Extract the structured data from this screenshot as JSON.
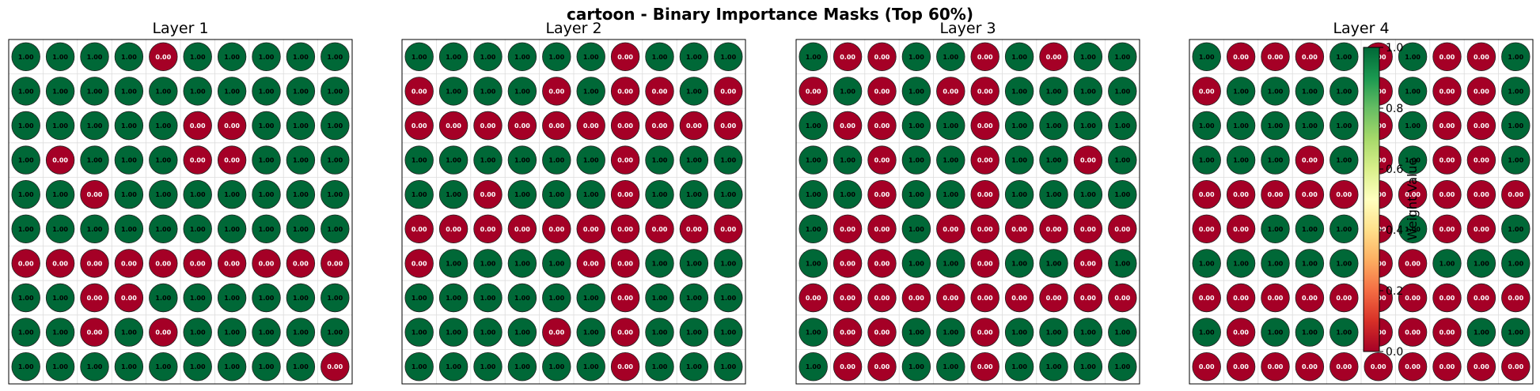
{
  "figure": {
    "title": "cartoon - Binary Importance Masks (Top 60%)"
  },
  "colors": {
    "one": "#006837",
    "zero": "#a50026",
    "grid": "#dddddd",
    "frame": "#000000"
  },
  "colorbar": {
    "label": "Weight Value",
    "ticks": [
      "0.0",
      "0.2",
      "0.4",
      "0.6",
      "0.8",
      "1.0"
    ],
    "range": [
      0,
      1
    ],
    "colormap": "RdYlGn"
  },
  "chart_data": [
    {
      "type": "heatmap",
      "title": "Layer 1",
      "rows": 10,
      "cols": 10,
      "values": [
        [
          1,
          1,
          1,
          1,
          0,
          1,
          1,
          1,
          1,
          1
        ],
        [
          1,
          1,
          1,
          1,
          1,
          1,
          1,
          1,
          1,
          1
        ],
        [
          1,
          1,
          1,
          1,
          1,
          0,
          0,
          1,
          1,
          1
        ],
        [
          1,
          0,
          1,
          1,
          1,
          0,
          0,
          1,
          1,
          1
        ],
        [
          1,
          1,
          0,
          1,
          1,
          1,
          1,
          1,
          1,
          1
        ],
        [
          1,
          1,
          1,
          1,
          1,
          1,
          1,
          1,
          1,
          1
        ],
        [
          0,
          0,
          0,
          0,
          0,
          0,
          0,
          0,
          0,
          0
        ],
        [
          1,
          1,
          0,
          0,
          1,
          1,
          1,
          1,
          1,
          1
        ],
        [
          1,
          1,
          0,
          1,
          0,
          1,
          1,
          1,
          1,
          1
        ],
        [
          1,
          1,
          1,
          1,
          1,
          1,
          1,
          1,
          1,
          0
        ]
      ]
    },
    {
      "type": "heatmap",
      "title": "Layer 2",
      "rows": 10,
      "cols": 10,
      "values": [
        [
          1,
          1,
          1,
          1,
          1,
          1,
          0,
          1,
          1,
          1
        ],
        [
          0,
          1,
          1,
          1,
          0,
          1,
          0,
          0,
          1,
          0
        ],
        [
          0,
          0,
          0,
          0,
          0,
          0,
          0,
          0,
          0,
          0
        ],
        [
          1,
          1,
          1,
          1,
          1,
          1,
          0,
          1,
          1,
          1
        ],
        [
          1,
          1,
          0,
          1,
          1,
          1,
          0,
          1,
          1,
          1
        ],
        [
          0,
          0,
          0,
          0,
          0,
          0,
          0,
          0,
          0,
          0
        ],
        [
          0,
          1,
          1,
          1,
          1,
          0,
          0,
          1,
          1,
          1
        ],
        [
          1,
          1,
          1,
          1,
          1,
          1,
          0,
          1,
          1,
          1
        ],
        [
          1,
          1,
          1,
          1,
          0,
          1,
          0,
          1,
          1,
          1
        ],
        [
          1,
          1,
          1,
          1,
          1,
          1,
          0,
          1,
          1,
          1
        ]
      ]
    },
    {
      "type": "heatmap",
      "title": "Layer 3",
      "rows": 10,
      "cols": 10,
      "values": [
        [
          1,
          0,
          0,
          1,
          1,
          0,
          1,
          0,
          1,
          1
        ],
        [
          0,
          1,
          0,
          1,
          0,
          0,
          1,
          1,
          1,
          1
        ],
        [
          1,
          0,
          0,
          1,
          1,
          0,
          1,
          1,
          1,
          1
        ],
        [
          1,
          1,
          0,
          1,
          1,
          0,
          1,
          1,
          0,
          1
        ],
        [
          1,
          1,
          0,
          1,
          1,
          0,
          1,
          1,
          1,
          1
        ],
        [
          1,
          0,
          0,
          1,
          0,
          0,
          0,
          0,
          0,
          0
        ],
        [
          1,
          0,
          0,
          1,
          1,
          0,
          1,
          1,
          0,
          1
        ],
        [
          0,
          0,
          0,
          0,
          0,
          0,
          0,
          0,
          0,
          0
        ],
        [
          1,
          0,
          0,
          1,
          1,
          0,
          1,
          1,
          1,
          1
        ],
        [
          1,
          0,
          0,
          1,
          1,
          0,
          1,
          1,
          1,
          1
        ]
      ]
    },
    {
      "type": "heatmap",
      "title": "Layer 4",
      "rows": 10,
      "cols": 10,
      "values": [
        [
          1,
          0,
          0,
          0,
          1,
          0,
          1,
          0,
          0,
          1
        ],
        [
          0,
          1,
          1,
          1,
          1,
          0,
          1,
          0,
          0,
          1
        ],
        [
          1,
          1,
          1,
          1,
          1,
          0,
          1,
          0,
          0,
          1
        ],
        [
          1,
          1,
          1,
          0,
          1,
          0,
          1,
          0,
          0,
          1
        ],
        [
          0,
          0,
          0,
          0,
          0,
          0,
          0,
          0,
          0,
          0
        ],
        [
          0,
          0,
          1,
          1,
          1,
          0,
          1,
          0,
          0,
          1
        ],
        [
          1,
          1,
          1,
          1,
          1,
          0,
          0,
          1,
          1,
          1
        ],
        [
          0,
          0,
          0,
          0,
          0,
          0,
          0,
          0,
          0,
          0
        ],
        [
          1,
          0,
          1,
          1,
          1,
          0,
          0,
          0,
          1,
          1
        ],
        [
          0,
          0,
          0,
          0,
          0,
          0,
          0,
          0,
          0,
          0
        ]
      ]
    }
  ]
}
